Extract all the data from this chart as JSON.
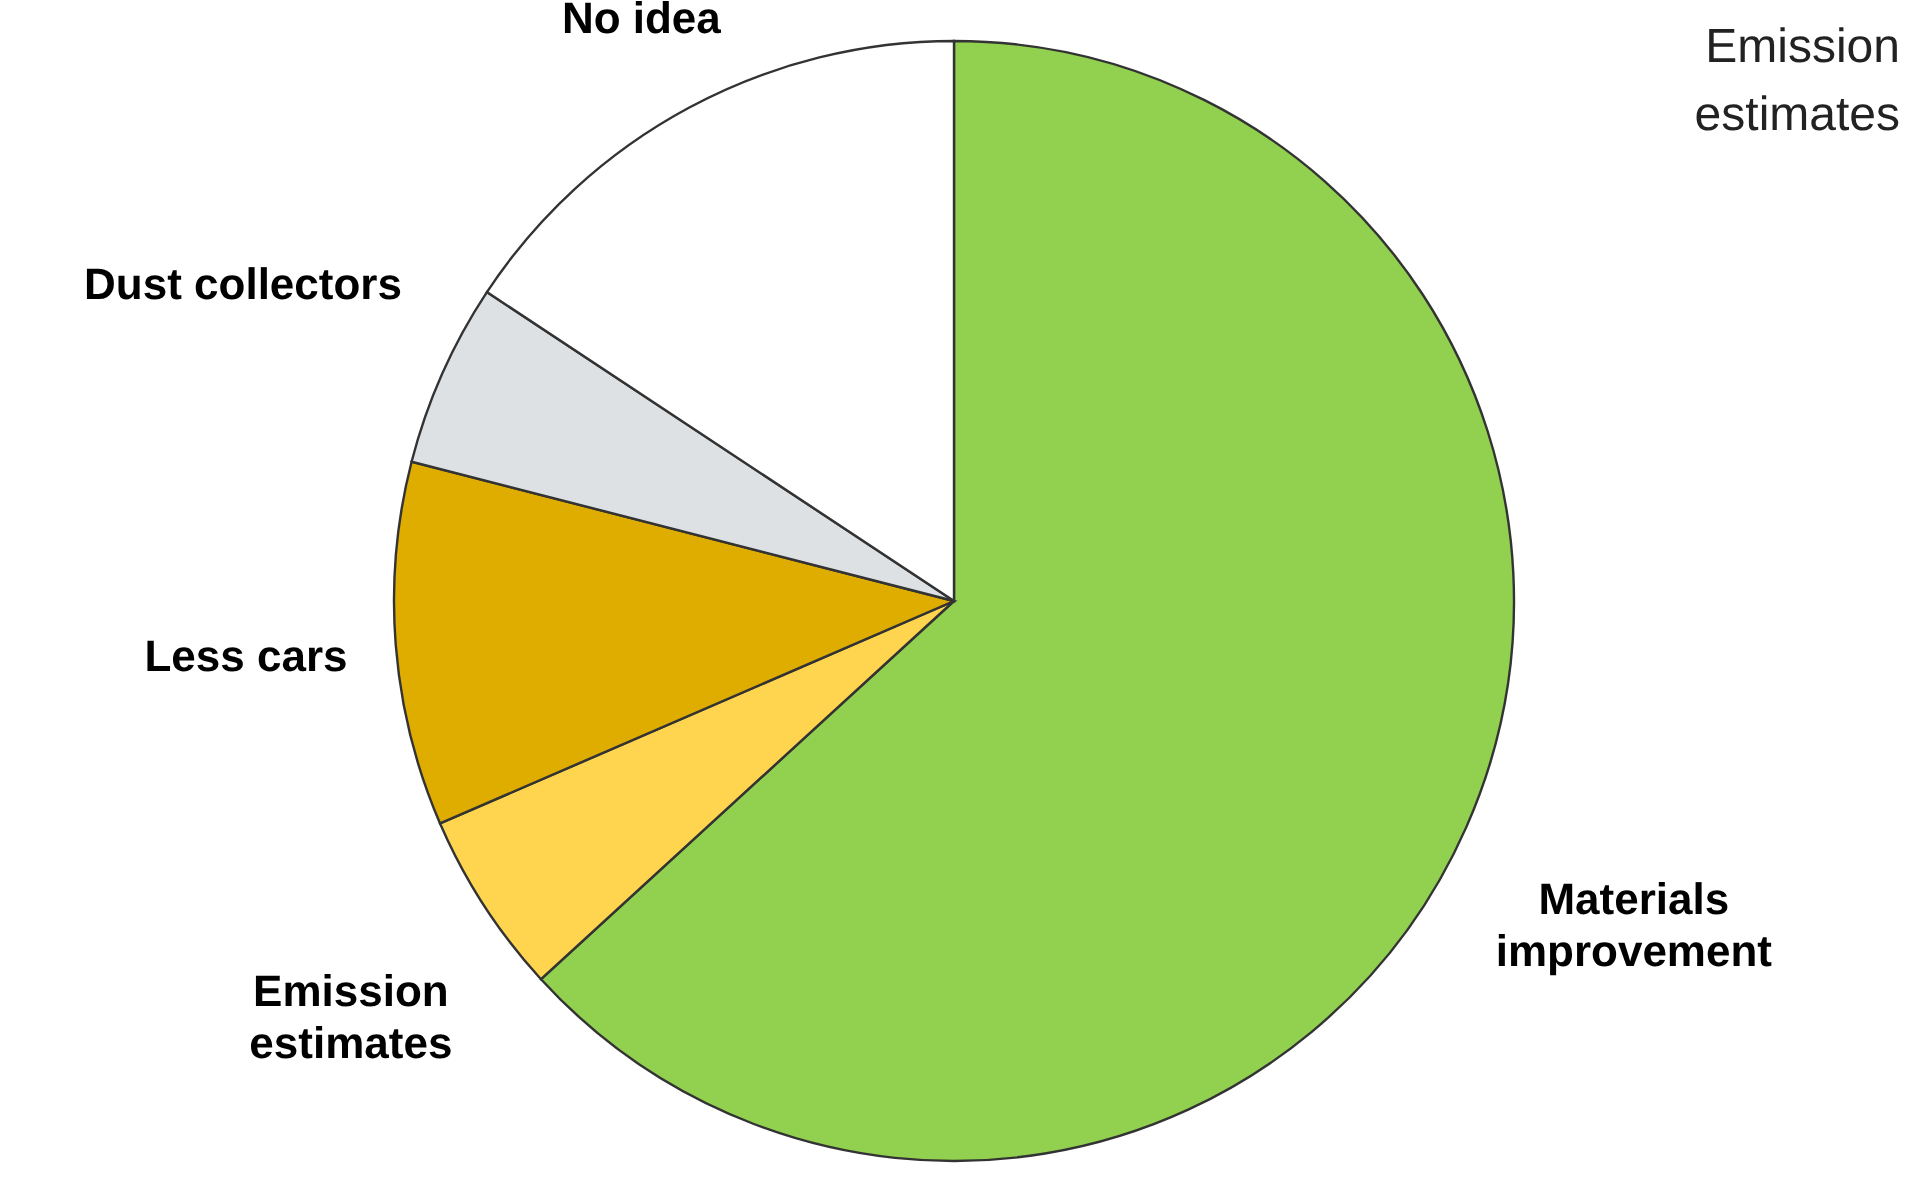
{
  "chart_data": {
    "type": "pie",
    "title": "Emission estimates",
    "categories": [
      "Materials improvement",
      "Emission estimates",
      "Less cars",
      "Dust collectors",
      "No idea"
    ],
    "values": [
      63.2,
      5.3,
      10.5,
      5.3,
      15.7
    ],
    "colors": [
      "#92d050",
      "#ffd54f",
      "#dfac00",
      "#dde1e4",
      "#ffffff"
    ],
    "legend": false
  }
}
